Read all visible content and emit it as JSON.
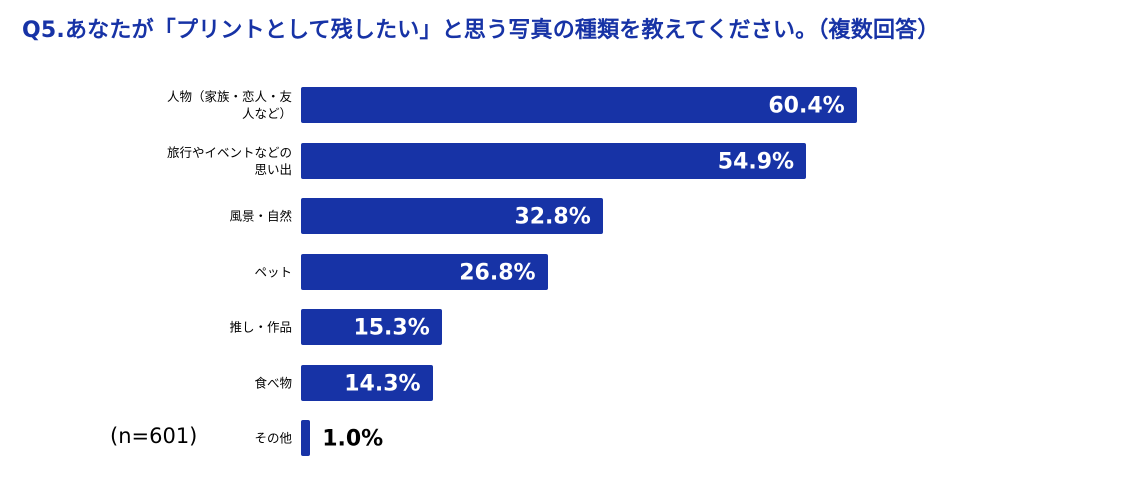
{
  "title": "Q5.あなたが「プリントとして残したい」と思う写真の種類を教えてください。（複数回答）",
  "sample_note": "(n=601)",
  "colors": {
    "bar": "#1733a6",
    "title": "#1733a6",
    "label_inside": "#ffffff",
    "label_outside": "#000000"
  },
  "chart_data": {
    "type": "bar",
    "orientation": "horizontal",
    "title": "Q5.あなたが「プリントとして残したい」と思う写真の種類を教えてください。（複数回答）",
    "categories": [
      "人物（家族・恋人・友人など）",
      "旅行やイベントなどの思い出",
      "風景・自然",
      "ペット",
      "推し・作品",
      "食べ物",
      "その他"
    ],
    "values": [
      60.4,
      54.9,
      32.8,
      26.8,
      15.3,
      14.3,
      1.0
    ],
    "value_labels": [
      "60.4%",
      "54.9%",
      "32.8%",
      "26.8%",
      "15.3%",
      "14.3%",
      "1.0%"
    ],
    "unit": "%",
    "xlim": [
      0,
      100
    ],
    "grid": false,
    "legend": "none"
  }
}
